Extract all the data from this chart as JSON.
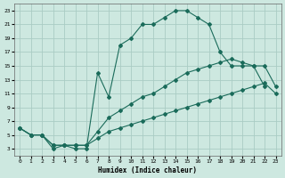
{
  "xlabel": "Humidex (Indice chaleur)",
  "background_color": "#cde8e0",
  "grid_color": "#aaccC4",
  "line_color": "#1a6b5a",
  "xlim": [
    -0.5,
    23.5
  ],
  "ylim": [
    2,
    24
  ],
  "xticks": [
    0,
    1,
    2,
    3,
    4,
    5,
    6,
    7,
    8,
    9,
    10,
    11,
    12,
    13,
    14,
    15,
    16,
    17,
    18,
    19,
    20,
    21,
    22,
    23
  ],
  "yticks": [
    3,
    5,
    7,
    9,
    11,
    13,
    15,
    17,
    19,
    21,
    23
  ],
  "curve1_x": [
    0,
    1,
    2,
    3,
    4,
    5,
    6,
    7,
    8,
    9,
    10,
    11,
    12,
    13,
    14,
    15,
    16,
    17,
    18,
    19,
    20,
    21,
    22
  ],
  "curve1_y": [
    6,
    5,
    5,
    3,
    3.5,
    3,
    3,
    14,
    10.5,
    18,
    19,
    21,
    21,
    22,
    23,
    23,
    22,
    21,
    17,
    15,
    15,
    15,
    12
  ],
  "curve2_x": [
    0,
    1,
    2,
    3,
    4,
    5,
    6,
    7,
    8,
    9,
    10,
    11,
    12,
    13,
    14,
    15,
    16,
    17,
    18,
    19,
    20,
    21,
    22,
    23
  ],
  "curve2_y": [
    6,
    5,
    5,
    3.5,
    3.5,
    3.5,
    3.5,
    5.5,
    7.5,
    8.5,
    9.5,
    10.5,
    11,
    12,
    13,
    14,
    14.5,
    15,
    15.5,
    16,
    15.5,
    15,
    15,
    12
  ],
  "curve3_x": [
    0,
    1,
    2,
    3,
    4,
    5,
    6,
    7,
    8,
    9,
    10,
    11,
    12,
    13,
    14,
    15,
    16,
    17,
    18,
    19,
    20,
    21,
    22,
    23
  ],
  "curve3_y": [
    6,
    5,
    5,
    3.5,
    3.5,
    3.5,
    3.5,
    4.5,
    5.5,
    6,
    6.5,
    7,
    7.5,
    8,
    8.5,
    9,
    9.5,
    10,
    10.5,
    11,
    11.5,
    12,
    12.5,
    11
  ]
}
